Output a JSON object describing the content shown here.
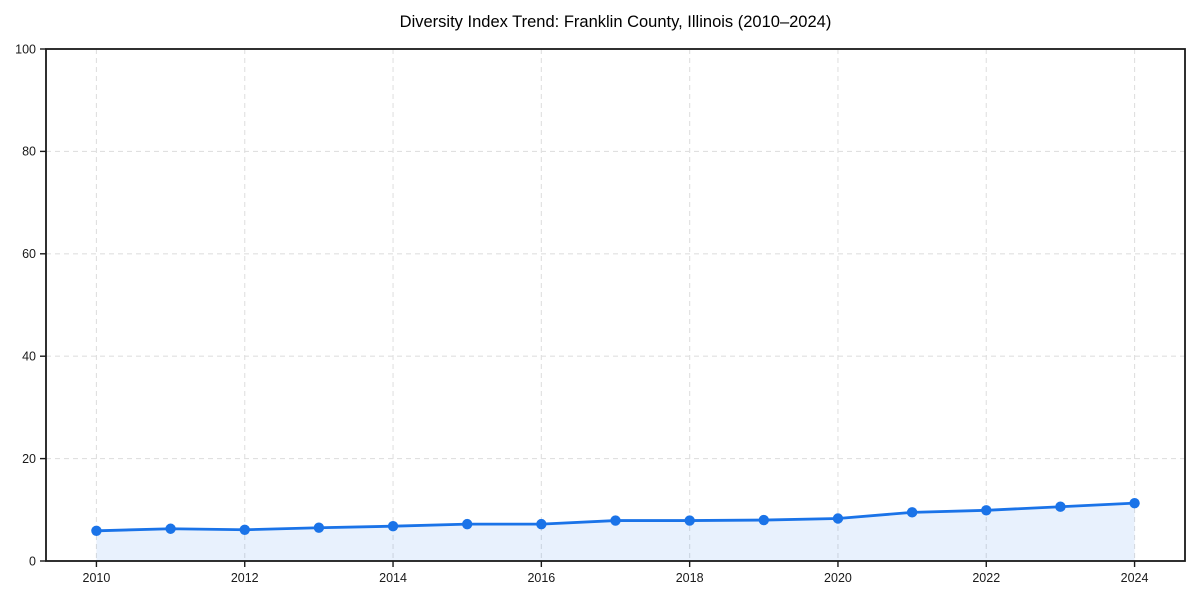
{
  "title": "Diversity Index Trend: Franklin County, Illinois (2010–2024)",
  "chart_data": {
    "type": "line",
    "title": "Diversity Index Trend: Franklin County, Illinois (2010–2024)",
    "x": [
      2010,
      2011,
      2012,
      2013,
      2014,
      2015,
      2016,
      2017,
      2018,
      2019,
      2020,
      2021,
      2022,
      2023,
      2024
    ],
    "series": [
      {
        "name": "Diversity Index",
        "values": [
          5.9,
          6.3,
          6.1,
          6.5,
          6.8,
          7.2,
          7.2,
          7.9,
          7.9,
          8.0,
          8.3,
          9.5,
          9.9,
          10.6,
          11.3
        ]
      }
    ],
    "xlabel": "",
    "ylabel": "",
    "xlim": [
      2009.32,
      2024.68
    ],
    "ylim": [
      0,
      100
    ],
    "xticks": [
      2010,
      2012,
      2014,
      2016,
      2018,
      2020,
      2022,
      2024
    ],
    "yticks": [
      0,
      20,
      40,
      60,
      80,
      100
    ],
    "xtick_labels": [
      "2010",
      "2012",
      "2014",
      "2016",
      "2018",
      "2020",
      "2022",
      "2024"
    ],
    "ytick_labels": [
      "0",
      "20",
      "40",
      "60",
      "80",
      "100"
    ],
    "grid": true,
    "grid_style": "dashed",
    "legend": false,
    "marker": "circle",
    "area_fill": true,
    "colors": {
      "line": "#1a73e8",
      "marker": "#1a73e8",
      "area_fill": "rgba(26,115,232,0.10)",
      "grid": "#e0e0e0",
      "axis": "#1a1a1a",
      "tick_label": "#1a1a1a",
      "title": "#000000",
      "background": "#ffffff"
    }
  }
}
